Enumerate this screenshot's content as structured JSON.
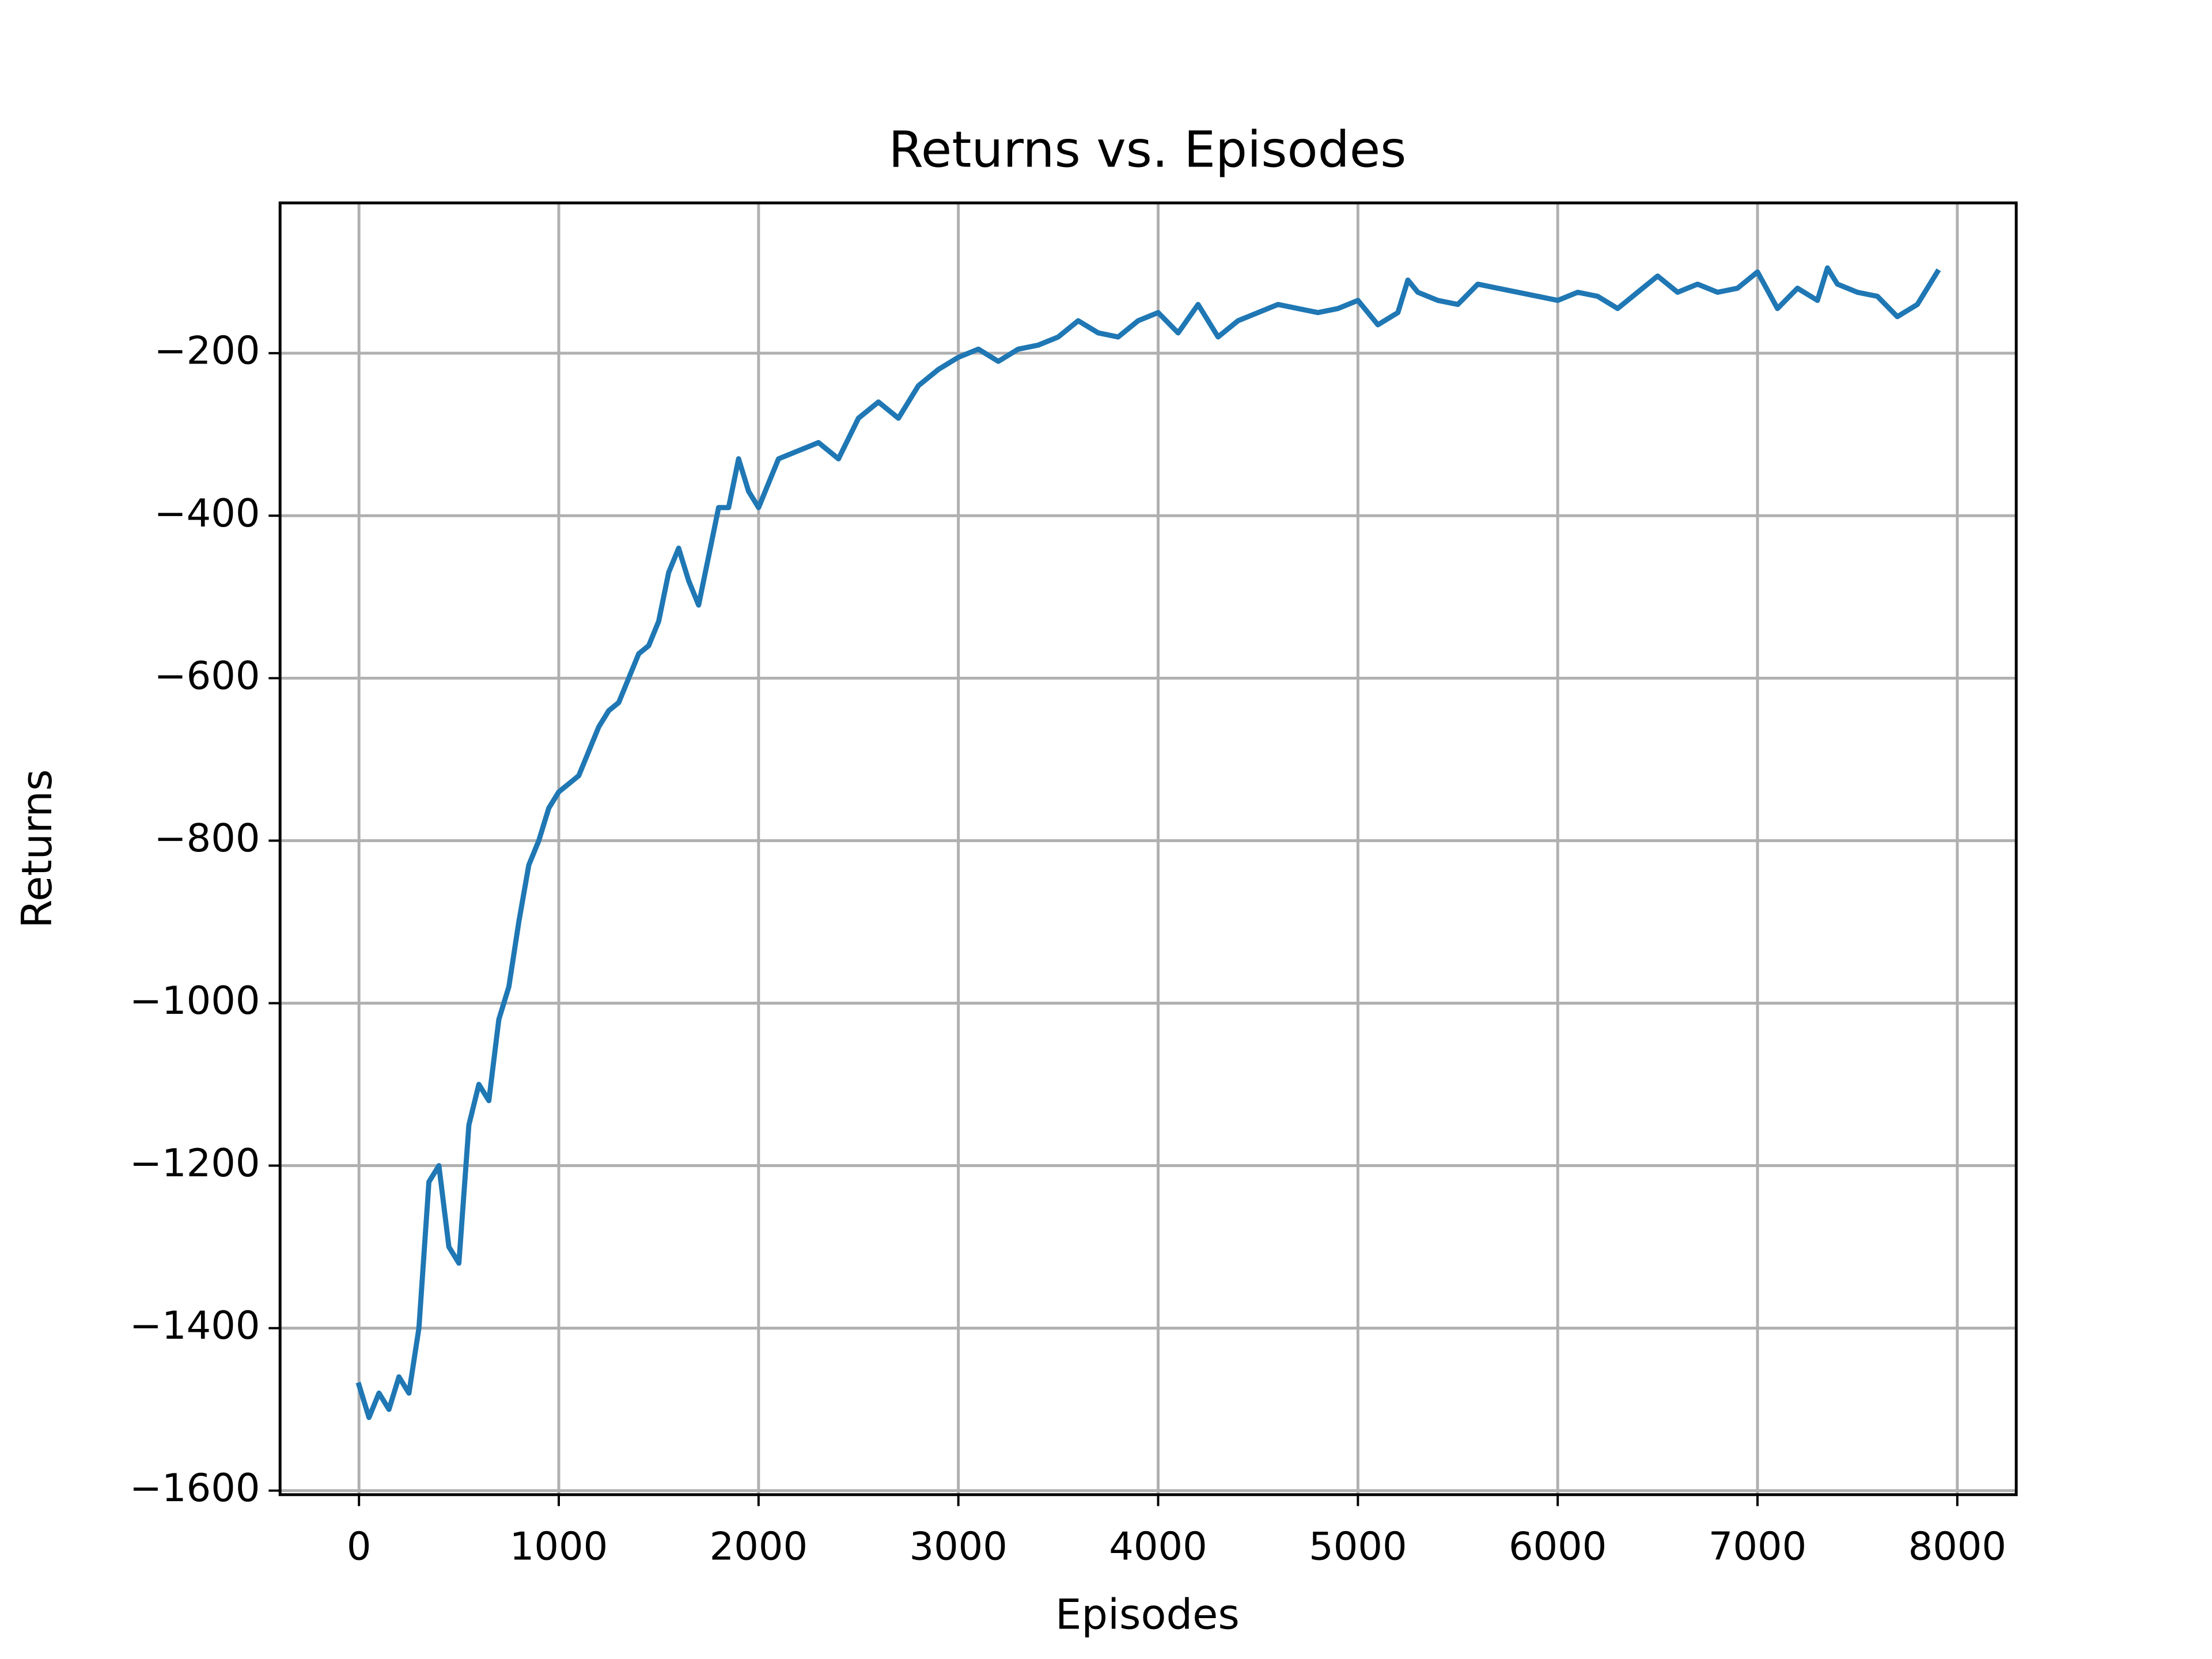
{
  "chart_data": {
    "type": "line",
    "title": "Returns vs. Episodes",
    "x_label": "Episodes",
    "y_label": "Returns",
    "grid": true,
    "xlim": [
      -395,
      8295
    ],
    "xticks": [
      0,
      1000,
      2000,
      3000,
      4000,
      5000,
      6000,
      7000,
      8000
    ],
    "ylim": [
      -1605,
      -15
    ],
    "yticks": [
      {
        "value": -1600,
        "label": "−1600"
      },
      {
        "value": -1400,
        "label": "−1400"
      },
      {
        "value": -1200,
        "label": "−1200"
      },
      {
        "value": -1000,
        "label": "−1000"
      },
      {
        "value": -800,
        "label": "−800"
      },
      {
        "value": -600,
        "label": "−600"
      },
      {
        "value": -400,
        "label": "−400"
      },
      {
        "value": -200,
        "label": "−200"
      }
    ],
    "x": [
      0,
      50,
      100,
      150,
      200,
      250,
      300,
      350,
      400,
      450,
      500,
      550,
      600,
      650,
      700,
      750,
      800,
      850,
      900,
      950,
      1000,
      1050,
      1100,
      1150,
      1200,
      1250,
      1300,
      1350,
      1400,
      1450,
      1500,
      1550,
      1600,
      1650,
      1700,
      1750,
      1800,
      1850,
      1900,
      1950,
      2000,
      2100,
      2200,
      2300,
      2400,
      2500,
      2600,
      2700,
      2800,
      2900,
      3000,
      3100,
      3200,
      3300,
      3400,
      3500,
      3600,
      3700,
      3800,
      3900,
      4000,
      4100,
      4200,
      4300,
      4400,
      4500,
      4600,
      4700,
      4800,
      4900,
      5000,
      5100,
      5200,
      5250,
      5300,
      5400,
      5500,
      5600,
      5700,
      5800,
      5900,
      6000,
      6100,
      6200,
      6300,
      6400,
      6500,
      6600,
      6700,
      6800,
      6900,
      7000,
      7100,
      7200,
      7300,
      7350,
      7400,
      7500,
      7600,
      7700,
      7800,
      7900
    ],
    "series": [
      {
        "name": "Returns",
        "color": "#1f77b4",
        "values": [
          -1470,
          -1510,
          -1480,
          -1500,
          -1460,
          -1480,
          -1400,
          -1220,
          -1200,
          -1300,
          -1320,
          -1150,
          -1100,
          -1120,
          -1020,
          -980,
          -900,
          -830,
          -800,
          -760,
          -740,
          -730,
          -720,
          -690,
          -660,
          -640,
          -630,
          -600,
          -570,
          -560,
          -530,
          -470,
          -440,
          -480,
          -510,
          -450,
          -390,
          -390,
          -330,
          -370,
          -390,
          -330,
          -320,
          -310,
          -330,
          -280,
          -260,
          -280,
          -240,
          -220,
          -205,
          -195,
          -210,
          -195,
          -190,
          -180,
          -160,
          -175,
          -180,
          -160,
          -150,
          -175,
          -140,
          -180,
          -160,
          -150,
          -140,
          -145,
          -150,
          -145,
          -135,
          -165,
          -150,
          -110,
          -125,
          -135,
          -140,
          -115,
          -120,
          -125,
          -130,
          -135,
          -125,
          -130,
          -145,
          -125,
          -105,
          -125,
          -115,
          -125,
          -120,
          -100,
          -145,
          -120,
          -135,
          -95,
          -115,
          -125,
          -130,
          -155,
          -140,
          -100
        ]
      }
    ]
  }
}
